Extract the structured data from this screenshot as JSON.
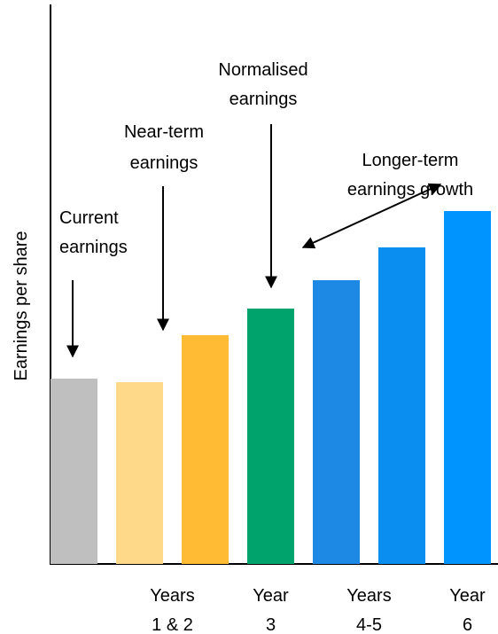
{
  "chart_data": {
    "type": "bar",
    "ylabel": "Earnings per share",
    "values": [
      209,
      205,
      258,
      288,
      320,
      357,
      398
    ],
    "colors": [
      "#bfbfbf",
      "#ffd98a",
      "#ffbb33",
      "#00a36c",
      "#1e88e5",
      "#0a8ff0",
      "#0094ff"
    ],
    "ylim": [
      0,
      631
    ],
    "groups": [
      {
        "label": [
          "Years",
          "1 & 2"
        ],
        "members": [
          1,
          2
        ]
      },
      {
        "label": [
          "Year",
          "3"
        ],
        "members": [
          3
        ]
      },
      {
        "label": [
          "Years",
          "4-5"
        ],
        "members": [
          4,
          5
        ]
      },
      {
        "label": [
          "Year",
          "6"
        ],
        "members": [
          6
        ]
      }
    ],
    "annotations": [
      {
        "text": [
          "Current",
          "earnings"
        ]
      },
      {
        "text": [
          "Near-term",
          "earnings"
        ]
      },
      {
        "text": [
          "Normalised",
          "earnings"
        ]
      },
      {
        "text": [
          "Longer-term",
          "earnings growth"
        ]
      }
    ]
  }
}
